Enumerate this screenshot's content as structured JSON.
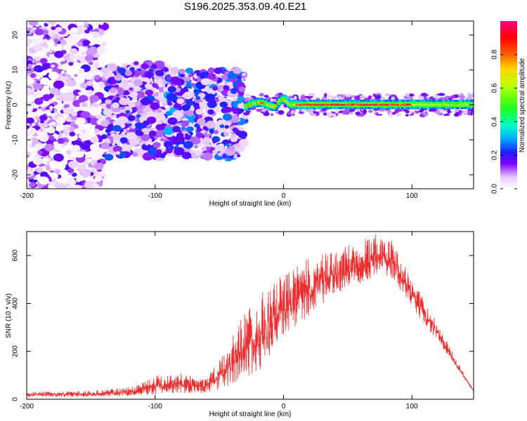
{
  "figure_title": "S196.2025.353.09.40.E21",
  "chart_data": [
    {
      "type": "heatmap",
      "title": "S196.2025.353.09.40.E21",
      "xlabel": "Height of straight line (km)",
      "ylabel": "Frequency (Hz)",
      "xlim": [
        -200,
        148
      ],
      "ylim": [
        -24,
        24
      ],
      "xticks": [
        -200,
        -100,
        0,
        100
      ],
      "yticks": [
        -20,
        -10,
        0,
        10,
        20
      ],
      "grid": false,
      "colorbar": {
        "label": "Normalized spectral amplitude",
        "range": [
          0,
          1
        ],
        "ticks": [
          0.0,
          0.2,
          0.4,
          0.6,
          0.8
        ],
        "colormap": "white-violet-purple-blue-cyan-green-yellow-orange-red-magenta"
      },
      "description_regions": [
        {
          "x_range": [
            -200,
            -140
          ],
          "freq_range": [
            -24,
            24
          ],
          "amplitude": [
            0.0,
            0.2
          ],
          "pattern": "broadband scatter"
        },
        {
          "x_range": [
            -140,
            -90
          ],
          "freq_range": [
            -15,
            12
          ],
          "amplitude": [
            0.05,
            0.25
          ],
          "pattern": "clustered blobs"
        },
        {
          "x_range": [
            -90,
            -30
          ],
          "freq_range": [
            -15,
            10
          ],
          "amplitude": [
            0.05,
            0.3
          ],
          "pattern": "clustered blobs"
        },
        {
          "x_range": [
            -30,
            148
          ],
          "freq_range": [
            -1.5,
            2
          ],
          "amplitude": [
            0.3,
            1.0
          ],
          "pattern": "narrow band near 0 Hz"
        }
      ]
    },
    {
      "type": "line",
      "xlabel": "Height of straight line (km)",
      "ylabel": "SNR (10 * v/v)",
      "xlim": [
        -200,
        148
      ],
      "ylim": [
        0,
        700
      ],
      "xticks": [
        -200,
        -100,
        0,
        100
      ],
      "yticks": [
        0,
        200,
        400,
        600
      ],
      "grid": false,
      "series": [
        {
          "name": "SNR",
          "color": "#ee3030",
          "envelope_x": [
            -200,
            -150,
            -120,
            -100,
            -80,
            -60,
            -45,
            -30,
            -15,
            0,
            20,
            40,
            60,
            75,
            85,
            100,
            120,
            135,
            148
          ],
          "envelope_low": [
            10,
            10,
            14,
            20,
            25,
            25,
            50,
            80,
            130,
            260,
            340,
            440,
            480,
            520,
            500,
            380,
            240,
            130,
            30
          ],
          "envelope_high": [
            30,
            35,
            50,
            100,
            110,
            90,
            200,
            380,
            460,
            520,
            590,
            620,
            670,
            700,
            660,
            500,
            320,
            160,
            40
          ]
        }
      ]
    }
  ]
}
